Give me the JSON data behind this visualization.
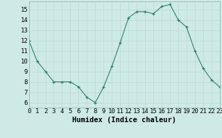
{
  "x": [
    0,
    1,
    2,
    3,
    4,
    5,
    6,
    7,
    8,
    9,
    10,
    11,
    12,
    13,
    14,
    15,
    16,
    17,
    18,
    19,
    20,
    21,
    22,
    23
  ],
  "y": [
    12,
    10,
    9,
    8,
    8,
    8,
    7.5,
    6.5,
    6,
    7.5,
    9.5,
    11.8,
    14.2,
    14.8,
    14.8,
    14.6,
    15.3,
    15.5,
    14.0,
    13.3,
    11,
    9.3,
    8.2,
    7.5
  ],
  "line_color": "#2e7b6e",
  "marker_color": "#2e7b6e",
  "bg_color": "#ceeae6",
  "grid_color": "#b8d8d4",
  "xlabel": "Humidex (Indice chaleur)",
  "xlim": [
    0,
    23
  ],
  "ylim": [
    5.5,
    15.8
  ],
  "yticks": [
    6,
    7,
    8,
    9,
    10,
    11,
    12,
    13,
    14,
    15
  ],
  "xticks": [
    0,
    1,
    2,
    3,
    4,
    5,
    6,
    7,
    8,
    9,
    10,
    11,
    12,
    13,
    14,
    15,
    16,
    17,
    18,
    19,
    20,
    21,
    22,
    23
  ],
  "tick_fontsize": 6.5,
  "label_fontsize": 7.5
}
